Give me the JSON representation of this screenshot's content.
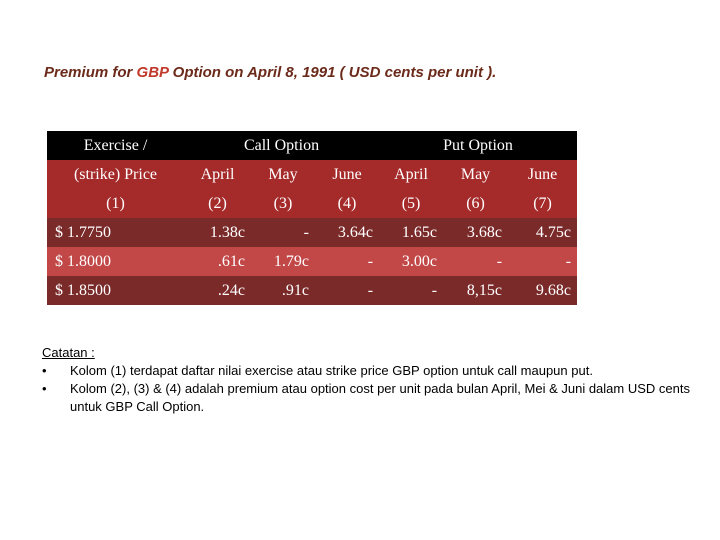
{
  "title": {
    "prefix": "Premium for ",
    "highlight": "GBP",
    "suffix": " Option on April 8, 1991 ( USD cents per unit )."
  },
  "table": {
    "header": {
      "exercise": "Exercise  /",
      "call": "Call Option",
      "put": "Put Option"
    },
    "subheader": [
      "(strike) Price",
      "April",
      "May",
      "June",
      "April",
      "May",
      "June"
    ],
    "col_numbers": [
      "(1)",
      "(2)",
      "(3)",
      "(4)",
      "(5)",
      "(6)",
      "(7)"
    ],
    "rows": [
      [
        "$ 1.7750",
        "1.38c",
        "-",
        "3.64c",
        "1.65c",
        "3.68c",
        "4.75c"
      ],
      [
        "$ 1.8000",
        ".61c",
        "1.79c",
        "-",
        "3.00c",
        "-",
        "-"
      ],
      [
        "$ 1.8500",
        ".24c",
        ".91c",
        "-",
        "-",
        "8,15c",
        "9.68c"
      ]
    ]
  },
  "notes": {
    "heading": "Catatan :",
    "items": [
      "Kolom (1) terdapat daftar nilai exercise atau strike price GBP option untuk call maupun put.",
      "Kolom (2), (3) & (4) adalah premium atau option cost per unit pada bulan April, Mei & Juni dalam USD cents untuk GBP Call Option."
    ]
  },
  "colors": {
    "title": "#6b2a1a",
    "title_highlight": "#c0392b",
    "header_bg": "#000000",
    "row_red": "#a52a2a",
    "row_dark": "#7b2a2a",
    "row_light": "#c24848"
  }
}
